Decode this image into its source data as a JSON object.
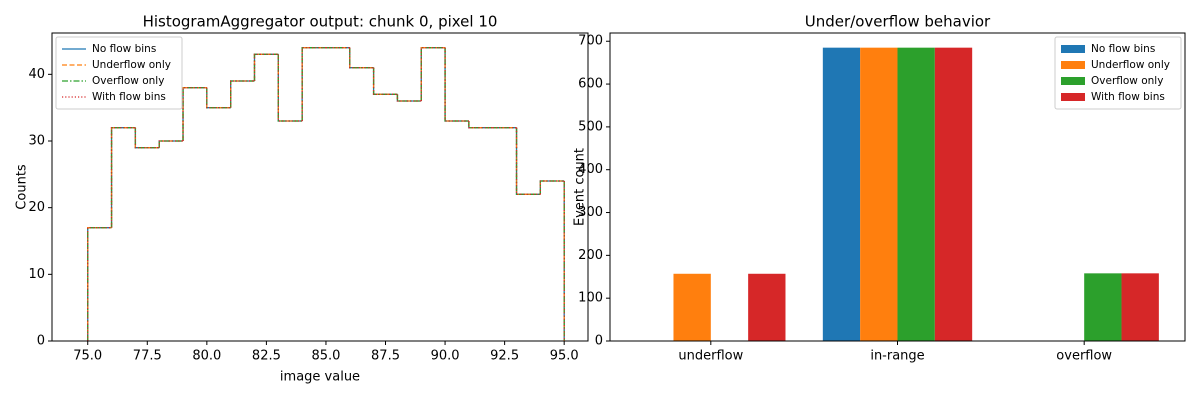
{
  "chart_data": [
    {
      "type": "histogram",
      "title": "HistogramAggregator output: chunk 0, pixel 10",
      "xlabel": "image value",
      "ylabel": "Counts",
      "bins": [
        75,
        76,
        77,
        78,
        79,
        80,
        81,
        82,
        83,
        84,
        85,
        86,
        87,
        88,
        89,
        90,
        91,
        92,
        93,
        94,
        95
      ],
      "series": [
        {
          "name": "No flow bins",
          "color": "#1f77b4",
          "linestyle": "solid",
          "values": [
            17,
            32,
            29,
            30,
            38,
            35,
            39,
            43,
            33,
            44,
            44,
            41,
            37,
            36,
            44,
            33,
            32,
            32,
            22,
            24
          ]
        },
        {
          "name": "Underflow only",
          "color": "#ff7f0e",
          "linestyle": "dashed",
          "values": [
            17,
            32,
            29,
            30,
            38,
            35,
            39,
            43,
            33,
            44,
            44,
            41,
            37,
            36,
            44,
            33,
            32,
            32,
            22,
            24
          ]
        },
        {
          "name": "Overflow only",
          "color": "#2ca02c",
          "linestyle": "dashdot",
          "values": [
            17,
            32,
            29,
            30,
            38,
            35,
            39,
            43,
            33,
            44,
            44,
            41,
            37,
            36,
            44,
            33,
            32,
            32,
            22,
            24
          ]
        },
        {
          "name": "With flow bins",
          "color": "#d62728",
          "linestyle": "dotted",
          "values": [
            17,
            32,
            29,
            30,
            38,
            35,
            39,
            43,
            33,
            44,
            44,
            41,
            37,
            36,
            44,
            33,
            32,
            32,
            22,
            24
          ]
        }
      ],
      "xlim": [
        73.5,
        96
      ],
      "ylim": [
        0,
        46.2
      ],
      "xticks": [
        {
          "value": 75,
          "label": "75.0"
        },
        77.5,
        {
          "value": 80,
          "label": "80.0"
        },
        82.5,
        {
          "value": 85,
          "label": "85.0"
        },
        87.5,
        {
          "value": 90,
          "label": "90.0"
        },
        92.5,
        {
          "value": 95,
          "label": "95.0"
        }
      ],
      "yticks": [
        0,
        10,
        20,
        30,
        40
      ],
      "legend": "upper left"
    },
    {
      "type": "bar",
      "title": "Under/overflow behavior",
      "ylabel": "Event count",
      "categories": [
        "underflow",
        "in-range",
        "overflow"
      ],
      "series": [
        {
          "name": "No flow bins",
          "color": "#1f77b4",
          "values": [
            0,
            685,
            0
          ]
        },
        {
          "name": "Underflow only",
          "color": "#ff7f0e",
          "values": [
            157,
            685,
            0
          ]
        },
        {
          "name": "Overflow only",
          "color": "#2ca02c",
          "values": [
            0,
            685,
            158
          ]
        },
        {
          "name": "With flow bins",
          "color": "#d62728",
          "values": [
            157,
            685,
            158
          ]
        }
      ],
      "ylim": [
        0,
        719.25
      ],
      "yticks": [
        0,
        100,
        200,
        300,
        400,
        500,
        600,
        700
      ],
      "legend": "upper right"
    }
  ]
}
